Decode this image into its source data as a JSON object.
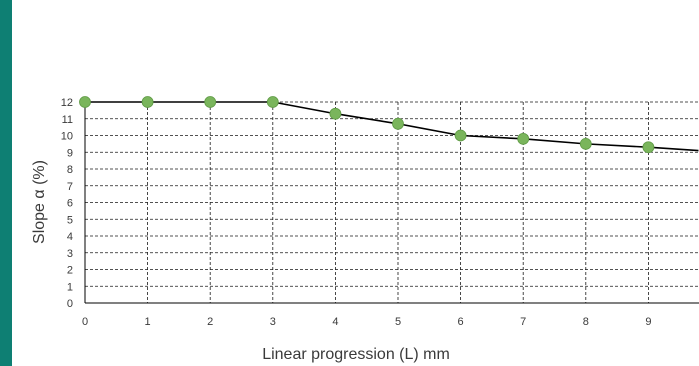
{
  "colors": {
    "accent": "#0e7f73",
    "line": "#000000",
    "marker": "#7ab55c",
    "grid": "#1a1a1a"
  },
  "chart_data": {
    "type": "line",
    "title": "",
    "xlabel": "Linear progression (L) mm",
    "ylabel": "Slope α (%)",
    "xlim": [
      0,
      9.8
    ],
    "ylim": [
      0,
      12
    ],
    "x_ticks": [
      "0",
      "1",
      "2",
      "3",
      "4",
      "5",
      "6",
      "7",
      "8",
      "9"
    ],
    "y_ticks": [
      "0",
      "1",
      "2",
      "3",
      "4",
      "5",
      "6",
      "7",
      "8",
      "9",
      "10",
      "11",
      "12"
    ],
    "grid": true,
    "legend": "none",
    "series": [
      {
        "x": [
          0,
          1,
          2,
          3,
          4,
          5,
          6,
          7,
          8,
          9,
          9.8
        ],
        "y": [
          12,
          12,
          12,
          12,
          11.3,
          10.7,
          10.0,
          9.8,
          9.5,
          9.3,
          9.1
        ],
        "markers": [
          true,
          true,
          true,
          true,
          true,
          true,
          true,
          true,
          true,
          true,
          false
        ]
      }
    ]
  }
}
